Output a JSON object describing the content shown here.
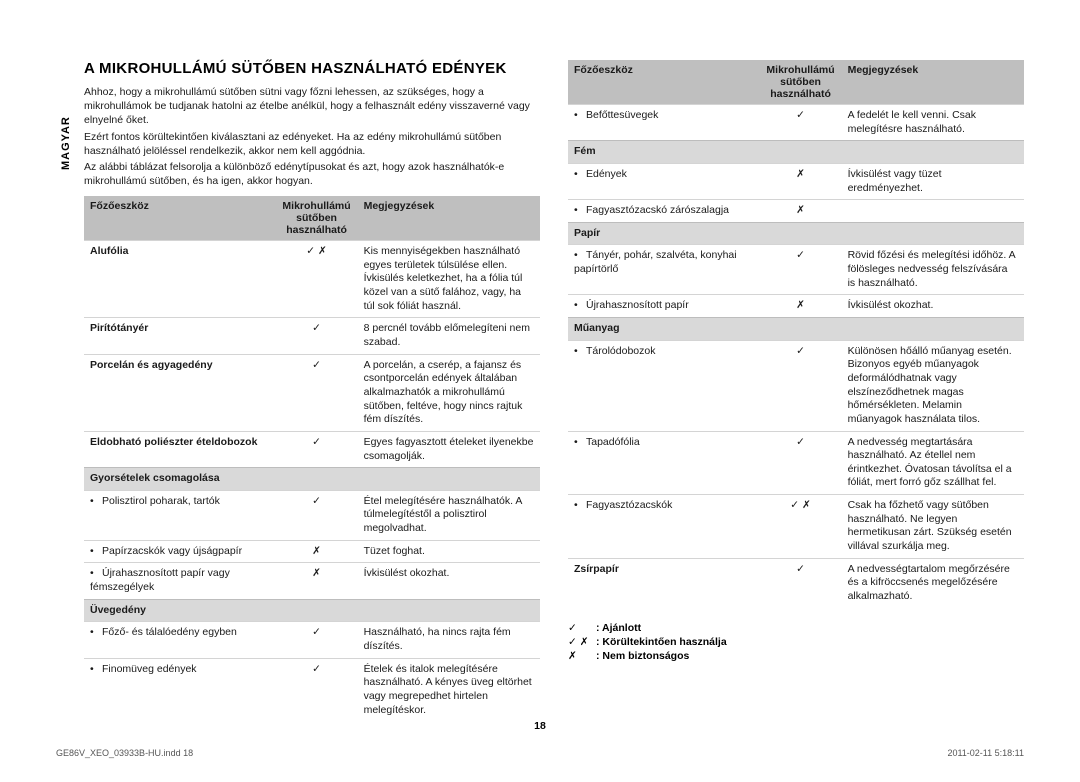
{
  "sideLabel": "MAGYAR",
  "title": "A MIKROHULLÁMÚ SÜTŐBEN HASZNÁLHATÓ EDÉNYEK",
  "intro": [
    "Ahhoz, hogy a mikrohullámú sütőben sütni vagy főzni lehessen, az szükséges, hogy a mikrohullámok be tudjanak hatolni az ételbe anélkül, hogy a felhasznált edény visszaverné vagy elnyelné őket.",
    "Ezért fontos körültekintően kiválasztani az edényeket. Ha az edény mikrohullámú sütőben használható jelöléssel rendelkezik, akkor nem kell aggódnia.",
    "Az alábbi táblázat felsorolja a különböző edénytípusokat és azt, hogy azok használhatók-e mikrohullámú sütőben, és ha igen, akkor hogyan."
  ],
  "headers": {
    "c1": "Főzőeszköz",
    "c2": "Mikrohullámú sütőben használható",
    "c3": "Megjegyzések"
  },
  "left": [
    {
      "type": "row",
      "bold": true,
      "c1": "Alufólia",
      "c2": "✓ ✗",
      "c3": "Kis mennyiségekben használható egyes területek túlsülése ellen. Ívkisülés keletkezhet, ha a fólia túl közel van a sütő falához, vagy, ha túl sok fóliát használ."
    },
    {
      "type": "row",
      "bold": true,
      "c1": "Pirítótányér",
      "c2": "✓",
      "c3": "8 percnél tovább előmelegíteni nem szabad."
    },
    {
      "type": "row",
      "bold": true,
      "c1": "Porcelán és agyagedény",
      "c2": "✓",
      "c3": "A porcelán, a cserép, a fajansz és csontporcelán edények általában alkalmazhatók a mikrohullámú sütőben, feltéve, hogy nincs rajtuk fém díszítés."
    },
    {
      "type": "row",
      "bold": true,
      "c1": "Eldobható poliészter ételdobozok",
      "c2": "✓",
      "c3": "Egyes fagyasztott ételeket ilyenekbe csomagolják."
    },
    {
      "type": "subhead",
      "c1": "Gyorsételek csomagolása"
    },
    {
      "type": "row",
      "bullet": true,
      "c1": "Polisztirol poharak, tartók",
      "c2": "✓",
      "c3": "Étel melegítésére használhatók. A túlmelegítéstől a polisztirol megolvadhat."
    },
    {
      "type": "row",
      "bullet": true,
      "c1": "Papírzacskók vagy újságpapír",
      "c2": "✗",
      "c3": "Tüzet foghat."
    },
    {
      "type": "row",
      "bullet": true,
      "c1": "Újrahasznosított papír vagy fémszegélyek",
      "c2": "✗",
      "c3": "Ívkisülést okozhat."
    },
    {
      "type": "subhead",
      "c1": "Üvegedény"
    },
    {
      "type": "row",
      "bullet": true,
      "c1": "Főző- és tálalóedény egyben",
      "c2": "✓",
      "c3": "Használható, ha nincs rajta fém díszítés."
    },
    {
      "type": "row",
      "bullet": true,
      "c1": "Finomüveg edények",
      "c2": "✓",
      "c3": "Ételek és italok melegítésére használható. A kényes üveg eltörhet vagy megrepedhet hirtelen melegítéskor."
    }
  ],
  "right": [
    {
      "type": "row",
      "bullet": true,
      "c1": "Befőttesüvegek",
      "c2": "✓",
      "c3": "A fedelét le kell venni. Csak melegítésre használható."
    },
    {
      "type": "subhead",
      "c1": "Fém"
    },
    {
      "type": "row",
      "bullet": true,
      "c1": "Edények",
      "c2": "✗",
      "c3": "Ívkisülést vagy tüzet eredményezhet."
    },
    {
      "type": "row",
      "bullet": true,
      "c1": "Fagyasztózacskó zárószalagja",
      "c2": "✗",
      "c3": ""
    },
    {
      "type": "subhead",
      "c1": "Papír"
    },
    {
      "type": "row",
      "bullet": true,
      "c1": "Tányér, pohár, szalvéta, konyhai papírtörlő",
      "c2": "✓",
      "c3": "Rövid főzési és melegítési időhöz. A fölösleges nedvesség felszívására is használható."
    },
    {
      "type": "row",
      "bullet": true,
      "c1": "Újrahasznosított papír",
      "c2": "✗",
      "c3": "Ívkisülést okozhat."
    },
    {
      "type": "subhead",
      "c1": "Műanyag"
    },
    {
      "type": "row",
      "bullet": true,
      "c1": "Tárolódobozok",
      "c2": "✓",
      "c3": "Különösen hőálló műanyag esetén. Bizonyos egyéb műanyagok deformálódhatnak vagy elszíneződhetnek magas hőmérsékleten. Melamin műanyagok használata tilos."
    },
    {
      "type": "row",
      "bullet": true,
      "c1": "Tapadófólia",
      "c2": "✓",
      "c3": "A nedvesség megtartására használható. Az étellel nem érintkezhet. Óvatosan távolítsa el a fóliát, mert forró gőz szállhat fel."
    },
    {
      "type": "row",
      "bullet": true,
      "c1": "Fagyasztózacskók",
      "c2": "✓ ✗",
      "c3": "Csak ha főzhető vagy sütőben használható. Ne legyen hermetikusan zárt. Szükség esetén villával szurkálja meg."
    },
    {
      "type": "row",
      "bold": true,
      "c1": "Zsírpapír",
      "c2": "✓",
      "c3": "A nedvességtartalom megőrzésére és a kifröccsenés megelőzésére alkalmazható."
    }
  ],
  "legend": [
    {
      "sym": "✓",
      "label": ": Ajánlott"
    },
    {
      "sym": "✓ ✗",
      "label": ": Körültekintően használja"
    },
    {
      "sym": "✗",
      "label": ": Nem biztonságos"
    }
  ],
  "pageNum": "18",
  "footerLeft": "GE86V_XEO_03933B-HU.indd   18",
  "footerRight": "2011-02-11   5:18:11"
}
